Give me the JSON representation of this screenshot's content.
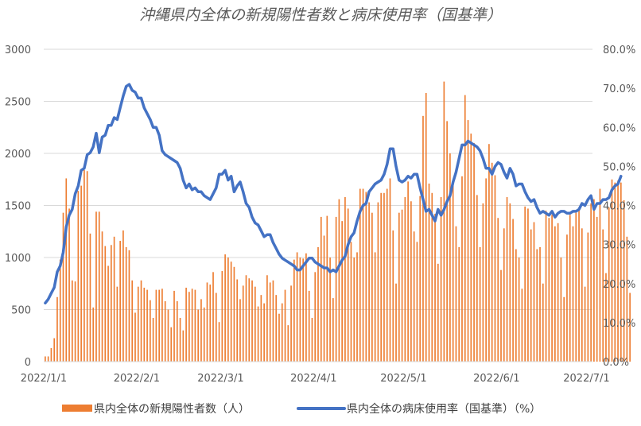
{
  "chart_data": {
    "type": "bar",
    "title": "沖縄県内全体の新規陽性者数と病床使用率（国基準）",
    "xlabel": "",
    "ylabel": "",
    "ylim": [
      0,
      3000
    ],
    "y2lim": [
      0,
      80
    ],
    "grid": true,
    "legend_position": "bottom",
    "y_ticks": [
      "0",
      "500",
      "1000",
      "1500",
      "2000",
      "2500",
      "3000"
    ],
    "y2_ticks": [
      "0.0%",
      "10.0%",
      "20.0%",
      "30.0%",
      "40.0%",
      "50.0%",
      "60.0%",
      "70.0%",
      "80.0%"
    ],
    "x_ticks": [
      "2022/1/1",
      "2022/2/1",
      "2022/3/1",
      "2022/4/1",
      "2022/5/1",
      "2022/6/1",
      "2022/7/1"
    ],
    "colors": {
      "bar": "#ED7D31",
      "line": "#4472C4",
      "grid": "#D9D9D9",
      "axis": "#595959"
    },
    "series": [
      {
        "name": "県内全体の新規陽性者数（人）",
        "type": "bar",
        "axis": "left",
        "start_date": "2022-01-01",
        "values": [
          50,
          50,
          130,
          225,
          620,
          980,
          1430,
          1760,
          1470,
          780,
          770,
          1640,
          1690,
          1840,
          1830,
          1230,
          520,
          1440,
          1440,
          1250,
          1110,
          920,
          1120,
          1200,
          720,
          1160,
          1260,
          1100,
          1070,
          780,
          470,
          720,
          780,
          710,
          690,
          590,
          420,
          690,
          690,
          700,
          580,
          500,
          330,
          680,
          580,
          420,
          300,
          710,
          670,
          700,
          690,
          500,
          600,
          520,
          760,
          740,
          860,
          660,
          380,
          870,
          1030,
          1000,
          960,
          910,
          790,
          600,
          730,
          830,
          800,
          780,
          720,
          530,
          640,
          560,
          830,
          760,
          780,
          640,
          460,
          560,
          690,
          350,
          730,
          980,
          1050,
          1000,
          990,
          1040,
          680,
          420,
          860,
          1100,
          1390,
          1210,
          1400,
          1000,
          610,
          1390,
          1560,
          1350,
          1580,
          1470,
          1150,
          1000,
          1050,
          1660,
          1660,
          1630,
          1530,
          1430,
          1050,
          1530,
          1620,
          1620,
          1660,
          1760,
          1260,
          750,
          1430,
          1460,
          1580,
          1730,
          1540,
          1250,
          1150,
          1590,
          2360,
          2580,
          1710,
          1620,
          1420,
          940,
          1580,
          2690,
          2310,
          2000,
          1730,
          1300,
          1100,
          1780,
          2560,
          2320,
          2190,
          2100,
          1600,
          1100,
          1520,
          1760,
          2090,
          1910,
          1790,
          1380,
          880,
          1280,
          1580,
          1520,
          1370,
          1080,
          1000,
          700,
          1490,
          1470,
          1270,
          1340,
          1080,
          1100,
          750,
          1450,
          1380,
          1410,
          1300,
          1330,
          1000,
          620,
          1220,
          1410,
          1300,
          1430,
          1480,
          1280,
          720,
          1240,
          1520,
          1560,
          1390,
          1660,
          1270,
          850,
          1480,
          1750,
          1720,
          1740,
          1720,
          1550,
          1200,
          660
        ]
      },
      {
        "name": "県内全体の病床使用率（国基準）（%）",
        "type": "line",
        "axis": "right",
        "start_date": "2022-01-01",
        "values": [
          15,
          16,
          17.5,
          19,
          23,
          24.5,
          28,
          34.5,
          37.5,
          39,
          43,
          45,
          49,
          49.5,
          53,
          53.5,
          55,
          58.5,
          53.5,
          57.5,
          58,
          60.5,
          60.5,
          62.5,
          62,
          65,
          68,
          70.5,
          71,
          69.5,
          69,
          67.5,
          67.5,
          65,
          63.5,
          62,
          60,
          60,
          58,
          54,
          53,
          52.5,
          52,
          51.5,
          51,
          49.5,
          46.5,
          44.5,
          45.5,
          44,
          44.5,
          43.5,
          43.5,
          42.5,
          42,
          41.5,
          43,
          44.5,
          48,
          48,
          49,
          46.5,
          47.5,
          43.5,
          45,
          46,
          43.5,
          40.5,
          39.5,
          37,
          35.5,
          35,
          33.5,
          32,
          32.5,
          32.5,
          30.5,
          29,
          27.5,
          26.5,
          26,
          25.5,
          25,
          24.5,
          23.5,
          23.5,
          24.5,
          25.5,
          26.5,
          26.5,
          25.5,
          25,
          24.5,
          24,
          24,
          23,
          23.5,
          23,
          24.5,
          26,
          27,
          30,
          32,
          33,
          36,
          38.5,
          40,
          40.5,
          43.5,
          44.5,
          45.5,
          46,
          46.5,
          48,
          50.5,
          54.5,
          54.5,
          50,
          46.5,
          46,
          46.5,
          47.5,
          47,
          48,
          48,
          44.5,
          41.5,
          38.5,
          39,
          37.5,
          36,
          39,
          37.5,
          39,
          41,
          42.5,
          46,
          48.5,
          52,
          55.5,
          55.5,
          56.5,
          56,
          55.5,
          55,
          54,
          52,
          49.5,
          49.5,
          48,
          50,
          51,
          50.5,
          48.5,
          47,
          49.5,
          48,
          45,
          45.5,
          45.5,
          43.5,
          42,
          41,
          41.5,
          39.5,
          38,
          38.5,
          38,
          37.5,
          38.5,
          37,
          38,
          38.5,
          38.5,
          38,
          38,
          38.5,
          38.5,
          39,
          40.5,
          40,
          41.5,
          42.5,
          39,
          40.5,
          40.5,
          41.5,
          41.5,
          42,
          44,
          45,
          45.5,
          47.5
        ]
      }
    ]
  }
}
